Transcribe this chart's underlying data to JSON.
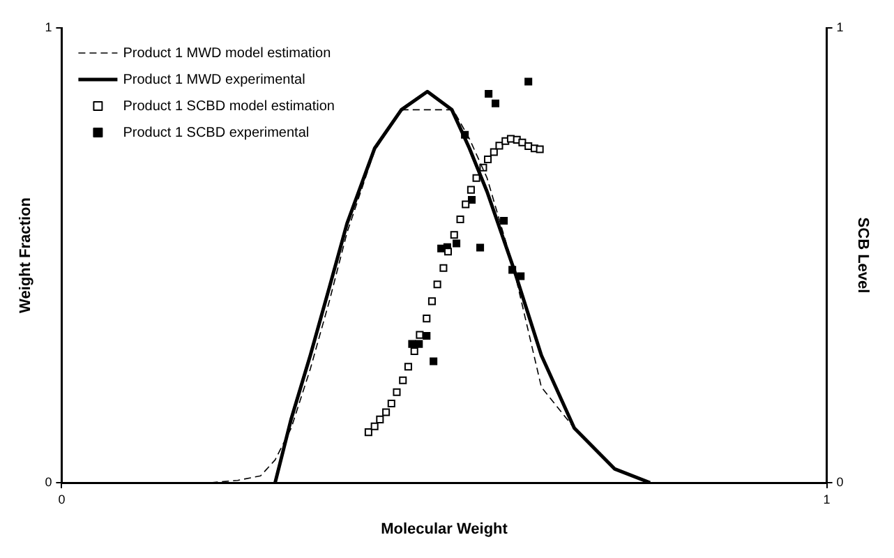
{
  "chart_data": {
    "type": "line",
    "xlabel": "Molecular Weight",
    "ylabel": "Weight Fraction",
    "y2label": "SCB Level",
    "xlim": [
      0,
      1
    ],
    "xticks": [
      0,
      1
    ],
    "ylim": [
      0,
      1
    ],
    "yticks": [
      0,
      1
    ],
    "y2lim": [
      0,
      1
    ],
    "y2ticks": [
      0,
      1
    ],
    "grid": false,
    "legend": "top left",
    "series": [
      {
        "name": "Product 1 MWD model estimation",
        "type": "line",
        "line_style": "dashed",
        "marker": "none",
        "color": "#000000",
        "x": [
          0.195,
          0.23,
          0.26,
          0.279,
          0.3,
          0.325,
          0.35,
          0.373,
          0.409,
          0.444,
          0.478,
          0.51,
          0.515,
          0.533,
          0.556,
          0.591,
          0.627,
          0.67,
          0.723,
          0.769
        ],
        "values": [
          0,
          0.005,
          0.015,
          0.05,
          0.12,
          0.25,
          0.4,
          0.55,
          0.73,
          0.82,
          0.82,
          0.82,
          0.81,
          0.756,
          0.67,
          0.47,
          0.21,
          0.12,
          0.03,
          0
        ]
      },
      {
        "name": "Product 1 MWD experimental",
        "type": "line",
        "line_style": "solid",
        "marker": "none",
        "color": "#000000",
        "x": [
          0.279,
          0.3,
          0.325,
          0.35,
          0.373,
          0.409,
          0.444,
          0.478,
          0.51,
          0.533,
          0.556,
          0.591,
          0.627,
          0.67,
          0.723,
          0.769
        ],
        "values": [
          0,
          0.14,
          0.28,
          0.43,
          0.57,
          0.735,
          0.82,
          0.86,
          0.82,
          0.735,
          0.64,
          0.47,
          0.28,
          0.12,
          0.03,
          0
        ]
      },
      {
        "name": "Product 1 SCBD model estimation",
        "type": "scatter",
        "axis": "y2",
        "marker": "square",
        "color": "#ffffff",
        "x": [
          0.401,
          0.409,
          0.416,
          0.424,
          0.431,
          0.438,
          0.446,
          0.453,
          0.461,
          0.468,
          0.477,
          0.484,
          0.491,
          0.499,
          0.505,
          0.513,
          0.521,
          0.528,
          0.535,
          0.542,
          0.551,
          0.557,
          0.565,
          0.572,
          0.58,
          0.587,
          0.595,
          0.602,
          0.61,
          0.618,
          0.625
        ],
        "values": [
          0.111,
          0.124,
          0.139,
          0.155,
          0.174,
          0.199,
          0.225,
          0.255,
          0.289,
          0.325,
          0.361,
          0.399,
          0.436,
          0.472,
          0.508,
          0.545,
          0.579,
          0.612,
          0.644,
          0.67,
          0.693,
          0.711,
          0.727,
          0.741,
          0.751,
          0.756,
          0.754,
          0.748,
          0.74,
          0.735,
          0.733
        ]
      },
      {
        "name": "Product 1 SCBD experimental",
        "type": "scatter",
        "axis": "y2",
        "marker": "square",
        "color": "#000000",
        "x": [
          0.458,
          0.467,
          0.477,
          0.486,
          0.496,
          0.504,
          0.516,
          0.527,
          0.536,
          0.547,
          0.558,
          0.567,
          0.578,
          0.589,
          0.6,
          0.61
        ],
        "values": [
          0.305,
          0.305,
          0.323,
          0.267,
          0.515,
          0.518,
          0.526,
          0.765,
          0.622,
          0.517,
          0.855,
          0.834,
          0.576,
          0.468,
          0.454,
          0.882
        ]
      }
    ]
  }
}
